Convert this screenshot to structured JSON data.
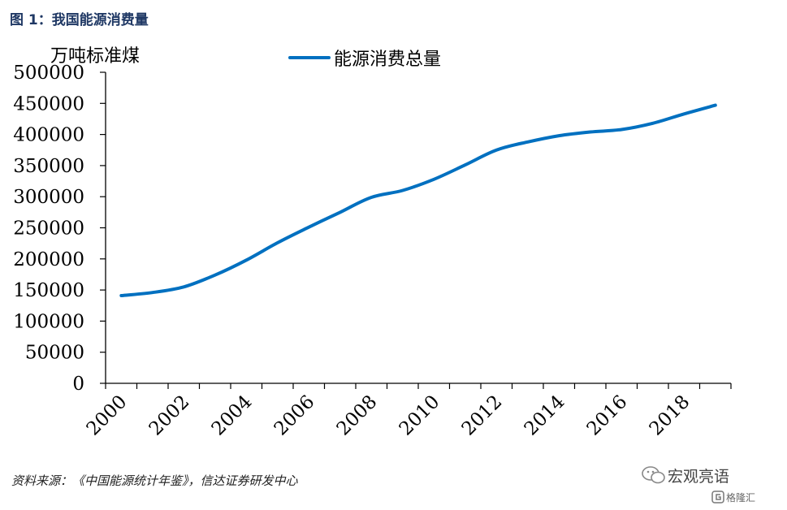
{
  "figure_title": "图 1：我国能源消费量",
  "source_note": "资料来源：《中国能源统计年鉴》，信达证券研发中心",
  "watermark": {
    "brand": "宏观亮语",
    "sub": "格隆汇"
  },
  "colors": {
    "line": "#0070c0",
    "title": "#1f3864",
    "axis": "#000000"
  },
  "chart_data": {
    "type": "line",
    "ylabel": "万吨标准煤",
    "xlabel": "",
    "ylim": [
      0,
      500000
    ],
    "yticks": [
      0,
      50000,
      100000,
      150000,
      200000,
      250000,
      300000,
      350000,
      400000,
      450000,
      500000
    ],
    "xticks": [
      2000,
      2002,
      2004,
      2006,
      2008,
      2010,
      2012,
      2014,
      2016,
      2018
    ],
    "legend_position": "top-center",
    "grid": false,
    "series": [
      {
        "name": "能源消费总量",
        "x": [
          2000,
          2001,
          2002,
          2003,
          2004,
          2005,
          2006,
          2007,
          2008,
          2009,
          2010,
          2011,
          2012,
          2013,
          2014,
          2015,
          2016,
          2017,
          2018,
          2019
        ],
        "values": [
          141000,
          146000,
          155000,
          174000,
          198000,
          226000,
          251000,
          275000,
          299000,
          310000,
          328000,
          351000,
          375000,
          388000,
          398000,
          404000,
          408000,
          418000,
          433000,
          447000
        ]
      }
    ]
  }
}
